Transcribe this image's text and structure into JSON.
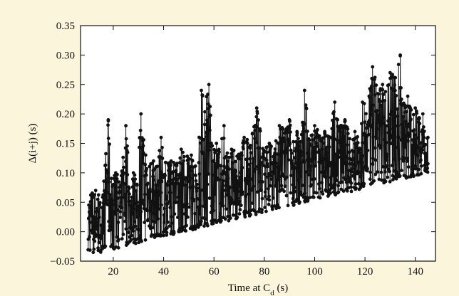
{
  "page": {
    "background": "#fbf5dc"
  },
  "chart_data": {
    "type": "scatter",
    "title": "",
    "xlabel": "Time at C",
    "xlabel_subscript": "d",
    "xlabel_unit": " (s)",
    "ylabel": "Δ(i+j) (s)",
    "xlim": [
      7,
      148
    ],
    "ylim": [
      -0.05,
      0.35
    ],
    "xticks": [
      20,
      40,
      60,
      80,
      100,
      120,
      140
    ],
    "yticks": [
      -0.05,
      0.0,
      0.05,
      0.1,
      0.15,
      0.2,
      0.25,
      0.3,
      0.35
    ],
    "xtick_labels": [
      "20",
      "40",
      "60",
      "80",
      "100",
      "120",
      "140"
    ],
    "ytick_labels": [
      "−0.05",
      "0.00",
      "0.05",
      "0.10",
      "0.15",
      "0.20",
      "0.25",
      "0.30",
      "0.35"
    ],
    "grid": false,
    "legend": "none",
    "series": [
      {
        "color": "#111111",
        "marker": "circle",
        "line": true,
        "lower_bound": {
          "x": [
            10,
            145
          ],
          "y": [
            -0.04,
            0.1
          ]
        },
        "peaks": [
          {
            "x": 13,
            "y": 0.07
          },
          {
            "x": 18,
            "y": 0.19
          },
          {
            "x": 21,
            "y": 0.1
          },
          {
            "x": 25,
            "y": 0.18
          },
          {
            "x": 28,
            "y": 0.1
          },
          {
            "x": 31,
            "y": 0.2
          },
          {
            "x": 36,
            "y": 0.12
          },
          {
            "x": 39,
            "y": 0.16
          },
          {
            "x": 43,
            "y": 0.12
          },
          {
            "x": 47,
            "y": 0.14
          },
          {
            "x": 51,
            "y": 0.13
          },
          {
            "x": 55,
            "y": 0.24
          },
          {
            "x": 58,
            "y": 0.25
          },
          {
            "x": 61,
            "y": 0.15
          },
          {
            "x": 64,
            "y": 0.18
          },
          {
            "x": 67,
            "y": 0.14
          },
          {
            "x": 72,
            "y": 0.16
          },
          {
            "x": 77,
            "y": 0.21
          },
          {
            "x": 82,
            "y": 0.15
          },
          {
            "x": 86,
            "y": 0.18
          },
          {
            "x": 90,
            "y": 0.19
          },
          {
            "x": 93,
            "y": 0.17
          },
          {
            "x": 96,
            "y": 0.24
          },
          {
            "x": 100,
            "y": 0.18
          },
          {
            "x": 104,
            "y": 0.17
          },
          {
            "x": 108,
            "y": 0.22
          },
          {
            "x": 112,
            "y": 0.19
          },
          {
            "x": 116,
            "y": 0.17
          },
          {
            "x": 119,
            "y": 0.22
          },
          {
            "x": 123,
            "y": 0.28
          },
          {
            "x": 127,
            "y": 0.25
          },
          {
            "x": 130,
            "y": 0.27
          },
          {
            "x": 134,
            "y": 0.3
          },
          {
            "x": 137,
            "y": 0.23
          },
          {
            "x": 140,
            "y": 0.21
          },
          {
            "x": 143,
            "y": 0.2
          },
          {
            "x": 145,
            "y": 0.16
          }
        ]
      }
    ]
  }
}
